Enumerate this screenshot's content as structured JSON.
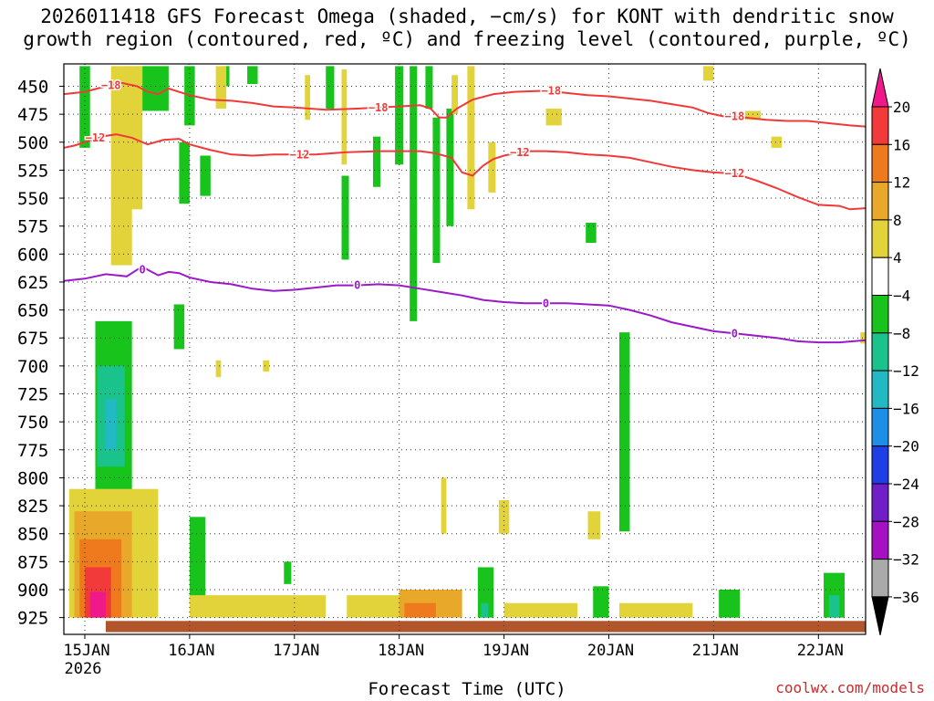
{
  "title_line1": "2026011418 GFS Forecast Omega (shaded, −cm/s) for KONT with dendritic snow",
  "title_line2": "growth region (contoured, red, ºC) and freezing level (contoured, purple, ºC)",
  "credit": "coolwx.com/models",
  "chart_data": {
    "type": "heatmap",
    "title": "2026011418 GFS Forecast Omega (shaded, −cm/s) for KONT with dendritic snow growth region (contoured, red, ºC) and freezing level (contoured, purple, ºC)",
    "xlabel": "Forecast Time (UTC)",
    "ylabel": "",
    "xlim": [
      -0.2,
      7.45
    ],
    "ylim": [
      940,
      430
    ],
    "y_ticks": [
      450,
      475,
      500,
      525,
      550,
      575,
      600,
      625,
      650,
      675,
      700,
      725,
      750,
      775,
      800,
      825,
      850,
      875,
      900,
      925
    ],
    "x_ticks": [
      {
        "x": 0,
        "label": "15JAN",
        "sub": "2026"
      },
      {
        "x": 1,
        "label": "16JAN"
      },
      {
        "x": 2,
        "label": "17JAN"
      },
      {
        "x": 3,
        "label": "18JAN"
      },
      {
        "x": 4,
        "label": "19JAN"
      },
      {
        "x": 5,
        "label": "20JAN"
      },
      {
        "x": 6,
        "label": "21JAN"
      },
      {
        "x": 7,
        "label": "22JAN"
      }
    ],
    "grid": true,
    "colorbar": {
      "levels": [
        20,
        16,
        12,
        8,
        4,
        -4,
        -8,
        -12,
        -16,
        -20,
        -24,
        -28,
        -32,
        -36
      ],
      "colors": [
        "#f0198c",
        "#f23a3a",
        "#ef7a1e",
        "#e8a92a",
        "#e3d33b",
        "#ffffff",
        "#18c41c",
        "#19c38b",
        "#21b9c4",
        "#1e8fe6",
        "#1e3fe6",
        "#6f1ec8",
        "#a511c2",
        "#aaaaaa"
      ],
      "top_color": "#f0198c",
      "bottom_color": "#000000"
    },
    "series": [
      {
        "name": "-18",
        "color": "#f03a3a",
        "x": [
          -0.2,
          0.0,
          0.2,
          0.35,
          0.5,
          0.6,
          0.7,
          0.8,
          1.0,
          1.2,
          1.4,
          1.6,
          1.8,
          2.0,
          2.3,
          2.6,
          2.8,
          3.0,
          3.2,
          3.3,
          3.38,
          3.45,
          3.55,
          3.7,
          3.9,
          4.1,
          4.4,
          4.6,
          4.8,
          5.0,
          5.2,
          5.4,
          5.6,
          5.8,
          5.95,
          6.1,
          6.3,
          6.5,
          6.7,
          6.9,
          7.1,
          7.3,
          7.45
        ],
        "y": [
          457,
          455,
          450,
          447,
          450,
          455,
          457,
          452,
          458,
          462,
          463,
          465,
          468,
          469,
          471,
          470,
          469,
          468,
          467,
          470,
          478,
          478,
          470,
          462,
          457,
          455,
          454,
          456,
          458,
          459,
          461,
          463,
          466,
          469,
          474,
          477,
          478,
          480,
          481,
          481,
          483,
          485,
          486
        ]
      },
      {
        "name": "-12",
        "color": "#f03a3a",
        "x": [
          -0.2,
          -0.1,
          0.0,
          0.15,
          0.3,
          0.45,
          0.6,
          0.75,
          0.9,
          1.0,
          1.2,
          1.4,
          1.6,
          1.8,
          2.0,
          2.2,
          2.5,
          2.8,
          3.0,
          3.2,
          3.35,
          3.5,
          3.6,
          3.7,
          3.8,
          3.9,
          4.0,
          4.2,
          4.4,
          4.6,
          4.8,
          5.0,
          5.2,
          5.4,
          5.6,
          5.8,
          6.0,
          6.2,
          6.4,
          6.6,
          6.8,
          7.0,
          7.2,
          7.3,
          7.45
        ],
        "y": [
          505,
          503,
          500,
          495,
          493,
          496,
          502,
          498,
          497,
          502,
          507,
          511,
          512,
          511,
          511,
          511,
          509,
          508,
          508,
          508,
          510,
          514,
          527,
          530,
          521,
          515,
          512,
          508,
          508,
          509,
          511,
          512,
          514,
          518,
          522,
          525,
          527,
          528,
          534,
          541,
          549,
          556,
          557,
          560,
          559
        ]
      },
      {
        "name": "0",
        "color": "#9b19c9",
        "x": [
          -0.2,
          0.0,
          0.2,
          0.4,
          0.55,
          0.6,
          0.7,
          0.8,
          0.9,
          1.0,
          1.2,
          1.4,
          1.6,
          1.8,
          2.0,
          2.2,
          2.4,
          2.6,
          2.8,
          3.0,
          3.2,
          3.4,
          3.6,
          3.8,
          4.0,
          4.2,
          4.4,
          4.6,
          4.8,
          5.0,
          5.2,
          5.4,
          5.6,
          5.8,
          6.0,
          6.2,
          6.4,
          6.6,
          6.8,
          7.0,
          7.2,
          7.45
        ],
        "y": [
          624,
          622,
          618,
          620,
          611,
          614,
          619,
          616,
          617,
          621,
          625,
          627,
          631,
          633,
          632,
          630,
          628,
          628,
          627,
          628,
          631,
          634,
          637,
          641,
          643,
          644,
          644,
          644,
          645,
          646,
          650,
          655,
          661,
          665,
          669,
          671,
          673,
          675,
          678,
          679,
          679,
          677
        ]
      }
    ],
    "contour_labels": [
      {
        "series": "-18",
        "text": "−18",
        "x": 0.25,
        "y": 449
      },
      {
        "series": "-18",
        "text": "−18",
        "x": 2.8,
        "y": 469
      },
      {
        "series": "-18",
        "text": "−18",
        "x": 4.45,
        "y": 454
      },
      {
        "series": "-18",
        "text": "−18",
        "x": 6.2,
        "y": 477
      },
      {
        "series": "-12",
        "text": "−12",
        "x": 0.1,
        "y": 496
      },
      {
        "series": "-12",
        "text": "−12",
        "x": 2.05,
        "y": 511
      },
      {
        "series": "-12",
        "text": "−12",
        "x": 4.15,
        "y": 509
      },
      {
        "series": "-12",
        "text": "−12",
        "x": 6.2,
        "y": 528
      },
      {
        "series": "0",
        "text": "0",
        "x": 0.55,
        "y": 614
      },
      {
        "series": "0",
        "text": "0",
        "x": 2.6,
        "y": 628
      },
      {
        "series": "0",
        "text": "0",
        "x": 4.4,
        "y": 644
      },
      {
        "series": "0",
        "text": "0",
        "x": 6.2,
        "y": 671
      }
    ],
    "shaded_regions": [
      {
        "level": -8,
        "x": [
          -0.05,
          0.05
        ],
        "y": [
          432,
          505
        ]
      },
      {
        "level": -8,
        "x": [
          0.5,
          0.8
        ],
        "y": [
          432,
          472
        ]
      },
      {
        "level": -8,
        "x": [
          0.95,
          1.05
        ],
        "y": [
          432,
          485
        ]
      },
      {
        "level": -8,
        "x": [
          0.9,
          1.0
        ],
        "y": [
          500,
          555
        ]
      },
      {
        "level": -8,
        "x": [
          1.1,
          1.2
        ],
        "y": [
          512,
          548
        ]
      },
      {
        "level": -8,
        "x": [
          1.3,
          1.38
        ],
        "y": [
          432,
          450
        ]
      },
      {
        "level": -8,
        "x": [
          1.55,
          1.65
        ],
        "y": [
          432,
          448
        ]
      },
      {
        "level": -8,
        "x": [
          2.3,
          2.38
        ],
        "y": [
          432,
          470
        ]
      },
      {
        "level": -8,
        "x": [
          2.45,
          2.52
        ],
        "y": [
          530,
          605
        ]
      },
      {
        "level": -8,
        "x": [
          2.75,
          2.82
        ],
        "y": [
          495,
          540
        ]
      },
      {
        "level": -8,
        "x": [
          2.96,
          3.04
        ],
        "y": [
          432,
          520
        ]
      },
      {
        "level": -8,
        "x": [
          3.1,
          3.17
        ],
        "y": [
          432,
          660
        ]
      },
      {
        "level": -8,
        "x": [
          3.25,
          3.32
        ],
        "y": [
          432,
          470
        ]
      },
      {
        "level": -8,
        "x": [
          3.32,
          3.39
        ],
        "y": [
          478,
          608
        ]
      },
      {
        "level": -8,
        "x": [
          3.45,
          3.52
        ],
        "y": [
          470,
          575
        ]
      },
      {
        "level": -8,
        "x": [
          4.78,
          4.88
        ],
        "y": [
          572,
          590
        ]
      },
      {
        "level": -8,
        "x": [
          5.1,
          5.2
        ],
        "y": [
          670,
          848
        ]
      },
      {
        "level": -8,
        "x": [
          0.1,
          0.45
        ],
        "y": [
          660,
          860
        ]
      },
      {
        "level": -12,
        "x": [
          0.12,
          0.38
        ],
        "y": [
          700,
          790
        ]
      },
      {
        "level": -16,
        "x": [
          0.2,
          0.3
        ],
        "y": [
          730,
          775
        ]
      },
      {
        "level": -8,
        "x": [
          0.85,
          0.95
        ],
        "y": [
          645,
          685
        ]
      },
      {
        "level": -8,
        "x": [
          1.0,
          1.15
        ],
        "y": [
          835,
          912
        ]
      },
      {
        "level": -8,
        "x": [
          1.9,
          1.97
        ],
        "y": [
          875,
          895
        ]
      },
      {
        "level": -8,
        "x": [
          3.75,
          3.9
        ],
        "y": [
          880,
          925
        ]
      },
      {
        "level": -12,
        "x": [
          3.78,
          3.85
        ],
        "y": [
          912,
          925
        ]
      },
      {
        "level": -8,
        "x": [
          4.85,
          5.0
        ],
        "y": [
          897,
          925
        ]
      },
      {
        "level": -8,
        "x": [
          6.05,
          6.25
        ],
        "y": [
          900,
          925
        ]
      },
      {
        "level": -8,
        "x": [
          7.05,
          7.25
        ],
        "y": [
          885,
          925
        ]
      },
      {
        "level": -12,
        "x": [
          7.1,
          7.2
        ],
        "y": [
          905,
          925
        ]
      },
      {
        "level": 4,
        "x": [
          0.25,
          0.45
        ],
        "y": [
          432,
          610
        ]
      },
      {
        "level": 4,
        "x": [
          0.4,
          0.55
        ],
        "y": [
          432,
          560
        ]
      },
      {
        "level": 4,
        "x": [
          1.25,
          1.35
        ],
        "y": [
          432,
          470
        ]
      },
      {
        "level": 4,
        "x": [
          2.1,
          2.15
        ],
        "y": [
          440,
          480
        ]
      },
      {
        "level": 4,
        "x": [
          2.45,
          2.5
        ],
        "y": [
          435,
          520
        ]
      },
      {
        "level": 4,
        "x": [
          3.65,
          3.72
        ],
        "y": [
          432,
          560
        ]
      },
      {
        "level": 4,
        "x": [
          3.5,
          3.56
        ],
        "y": [
          440,
          475
        ]
      },
      {
        "level": 4,
        "x": [
          3.85,
          3.92
        ],
        "y": [
          500,
          545
        ]
      },
      {
        "level": 4,
        "x": [
          4.4,
          4.55
        ],
        "y": [
          470,
          485
        ]
      },
      {
        "level": 4,
        "x": [
          5.9,
          6.0
        ],
        "y": [
          432,
          445
        ]
      },
      {
        "level": 4,
        "x": [
          6.55,
          6.65
        ],
        "y": [
          495,
          505
        ]
      },
      {
        "level": 4,
        "x": [
          6.3,
          6.45
        ],
        "y": [
          472,
          480
        ]
      },
      {
        "level": 4,
        "x": [
          4.8,
          4.92
        ],
        "y": [
          830,
          855
        ]
      },
      {
        "level": 4,
        "x": [
          3.4,
          3.45
        ],
        "y": [
          800,
          850
        ]
      },
      {
        "level": 4,
        "x": [
          3.95,
          4.05
        ],
        "y": [
          820,
          850
        ]
      },
      {
        "level": 4,
        "x": [
          7.4,
          7.45
        ],
        "y": [
          670,
          680
        ]
      },
      {
        "level": 4,
        "x": [
          1.7,
          1.76
        ],
        "y": [
          695,
          705
        ]
      },
      {
        "level": 4,
        "x": [
          1.25,
          1.3
        ],
        "y": [
          695,
          710
        ]
      },
      {
        "level": 4,
        "x": [
          -0.15,
          0.7
        ],
        "y": [
          810,
          925
        ]
      },
      {
        "level": 8,
        "x": [
          -0.1,
          0.45
        ],
        "y": [
          830,
          925
        ]
      },
      {
        "level": 12,
        "x": [
          -0.05,
          0.35
        ],
        "y": [
          855,
          925
        ]
      },
      {
        "level": 16,
        "x": [
          0.0,
          0.25
        ],
        "y": [
          880,
          925
        ]
      },
      {
        "level": 20,
        "x": [
          0.05,
          0.2
        ],
        "y": [
          902,
          925
        ]
      },
      {
        "level": 4,
        "x": [
          1.0,
          2.3
        ],
        "y": [
          905,
          925
        ]
      },
      {
        "level": 4,
        "x": [
          2.5,
          3.3
        ],
        "y": [
          905,
          925
        ]
      },
      {
        "level": 8,
        "x": [
          3.0,
          3.6
        ],
        "y": [
          900,
          925
        ]
      },
      {
        "level": 12,
        "x": [
          3.05,
          3.35
        ],
        "y": [
          912,
          925
        ]
      },
      {
        "level": 4,
        "x": [
          4.0,
          4.7
        ],
        "y": [
          912,
          925
        ]
      },
      {
        "level": 4,
        "x": [
          5.1,
          5.8
        ],
        "y": [
          912,
          925
        ]
      }
    ],
    "surface_band": {
      "color": "#b0552c",
      "y": [
        928,
        938
      ],
      "x": [
        0.2,
        7.45
      ]
    }
  },
  "colorbar_labels": [
    "20",
    "16",
    "12",
    "8",
    "4",
    "−4",
    "−8",
    "−12",
    "−16",
    "−20",
    "−24",
    "−28",
    "−32",
    "−36"
  ]
}
